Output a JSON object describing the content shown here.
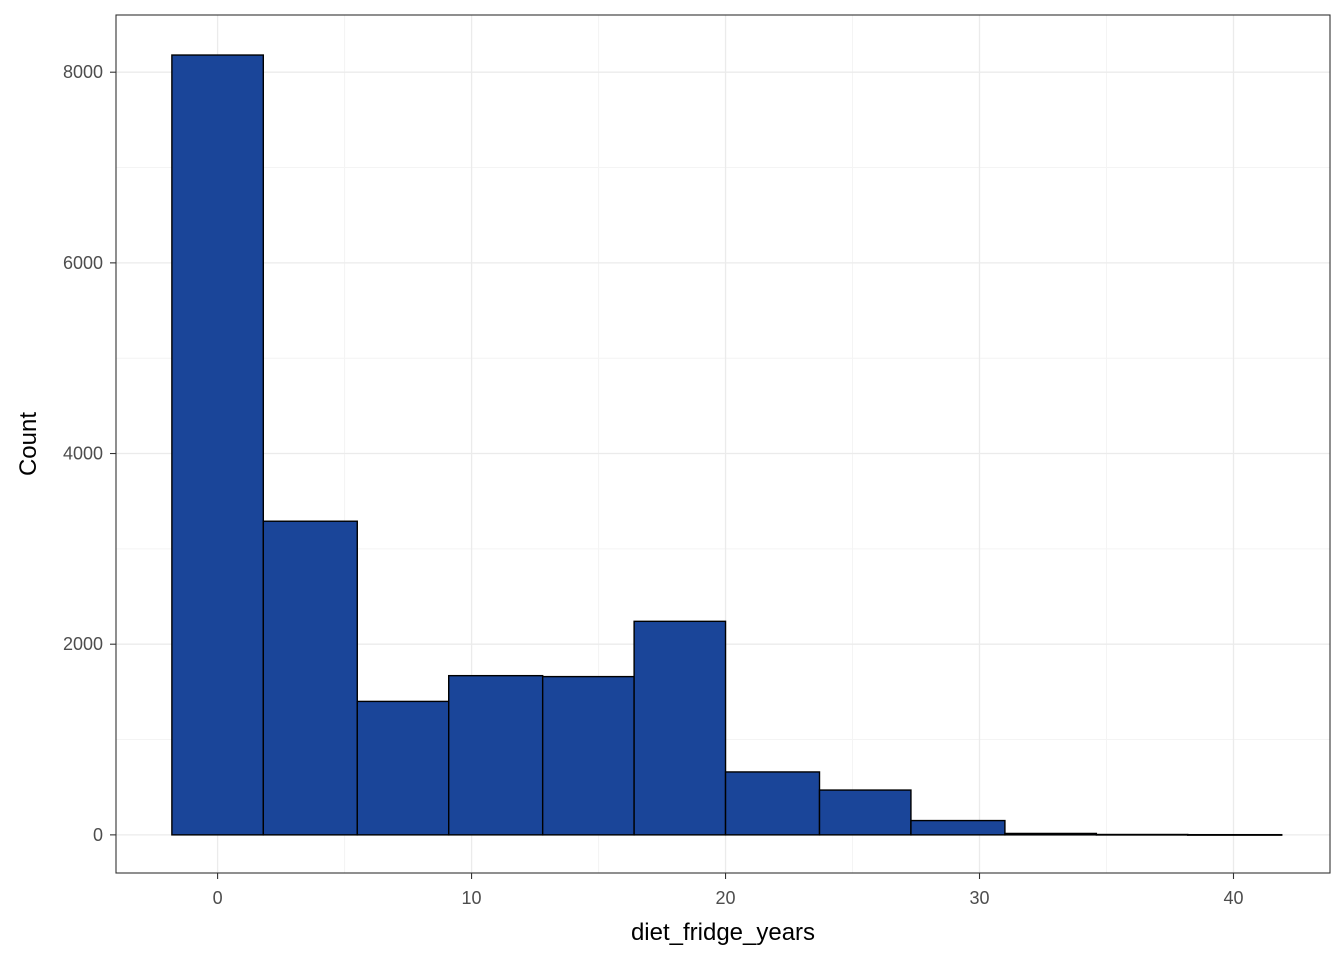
{
  "chart_data": {
    "type": "bar",
    "subtype": "histogram",
    "title": "",
    "xlabel": "diet_fridge_years",
    "ylabel": "Count",
    "xlim": [
      -4.0,
      43.8
    ],
    "ylim": [
      -400,
      8600
    ],
    "x_ticks": [
      0,
      10,
      20,
      30,
      40
    ],
    "y_ticks": [
      0,
      2000,
      4000,
      6000,
      8000
    ],
    "grid": true,
    "legend": "none",
    "bins": [
      {
        "x0": -1.8,
        "x1": 1.8,
        "count": 8180
      },
      {
        "x0": 1.8,
        "x1": 5.5,
        "count": 3290
      },
      {
        "x0": 5.5,
        "x1": 9.1,
        "count": 1400
      },
      {
        "x0": 9.1,
        "x1": 12.8,
        "count": 1670
      },
      {
        "x0": 12.8,
        "x1": 16.4,
        "count": 1660
      },
      {
        "x0": 16.4,
        "x1": 20.0,
        "count": 2240
      },
      {
        "x0": 20.0,
        "x1": 23.7,
        "count": 660
      },
      {
        "x0": 23.7,
        "x1": 27.3,
        "count": 470
      },
      {
        "x0": 27.3,
        "x1": 31.0,
        "count": 150
      },
      {
        "x0": 31.0,
        "x1": 34.6,
        "count": 15
      },
      {
        "x0": 34.6,
        "x1": 38.2,
        "count": 4
      },
      {
        "x0": 38.2,
        "x1": 41.9,
        "count": 2
      }
    ],
    "colors": {
      "fill": "#1a4599",
      "outline": "#000000",
      "grid_major": "#ebebeb",
      "grid_minor": "#f4f4f4",
      "panel_border": "#333333"
    }
  }
}
